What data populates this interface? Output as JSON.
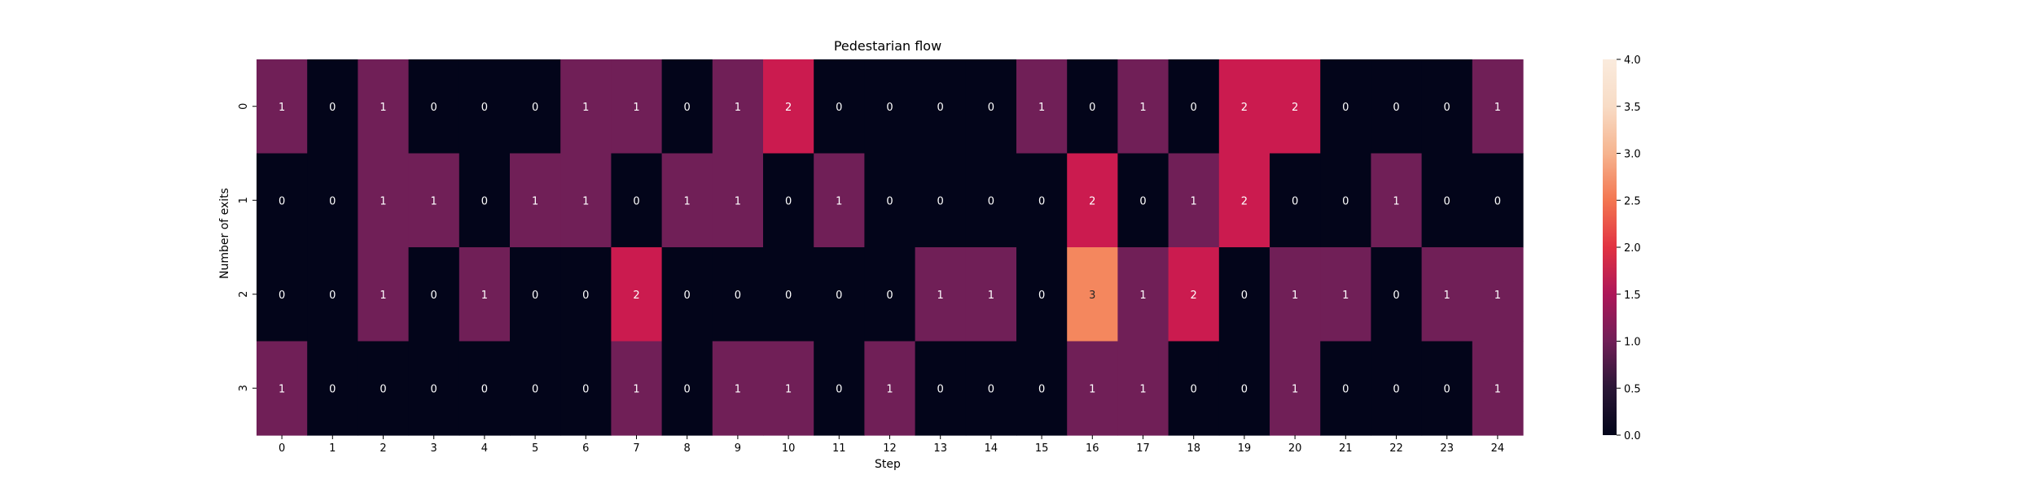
{
  "chart_data": {
    "type": "heatmap",
    "title": "Pedestarian flow",
    "xlabel": "Step",
    "ylabel": "Number of exits",
    "x_categories": [
      "0",
      "1",
      "2",
      "3",
      "4",
      "5",
      "6",
      "7",
      "8",
      "9",
      "10",
      "11",
      "12",
      "13",
      "14",
      "15",
      "16",
      "17",
      "18",
      "19",
      "20",
      "21",
      "22",
      "23",
      "24"
    ],
    "y_categories": [
      "0",
      "1",
      "2",
      "3"
    ],
    "values": [
      [
        1,
        0,
        1,
        0,
        0,
        0,
        1,
        1,
        0,
        1,
        2,
        0,
        0,
        0,
        0,
        1,
        0,
        1,
        0,
        2,
        2,
        0,
        0,
        0,
        1
      ],
      [
        0,
        0,
        1,
        1,
        0,
        1,
        1,
        0,
        1,
        1,
        0,
        1,
        0,
        0,
        0,
        0,
        2,
        0,
        1,
        2,
        0,
        0,
        1,
        0,
        0
      ],
      [
        0,
        0,
        1,
        0,
        1,
        0,
        0,
        2,
        0,
        0,
        0,
        0,
        0,
        1,
        1,
        0,
        3,
        1,
        2,
        0,
        1,
        1,
        0,
        1,
        1
      ],
      [
        1,
        0,
        0,
        0,
        0,
        0,
        0,
        1,
        0,
        1,
        1,
        0,
        1,
        0,
        0,
        0,
        1,
        1,
        0,
        0,
        1,
        0,
        0,
        0,
        1
      ]
    ],
    "value_range": [
      0,
      4
    ],
    "colorbar_ticks": [
      "0.0",
      "0.5",
      "1.0",
      "1.5",
      "2.0",
      "2.5",
      "3.0",
      "3.5",
      "4.0"
    ],
    "colormap": "rocket",
    "annotations": true,
    "grid": false
  }
}
